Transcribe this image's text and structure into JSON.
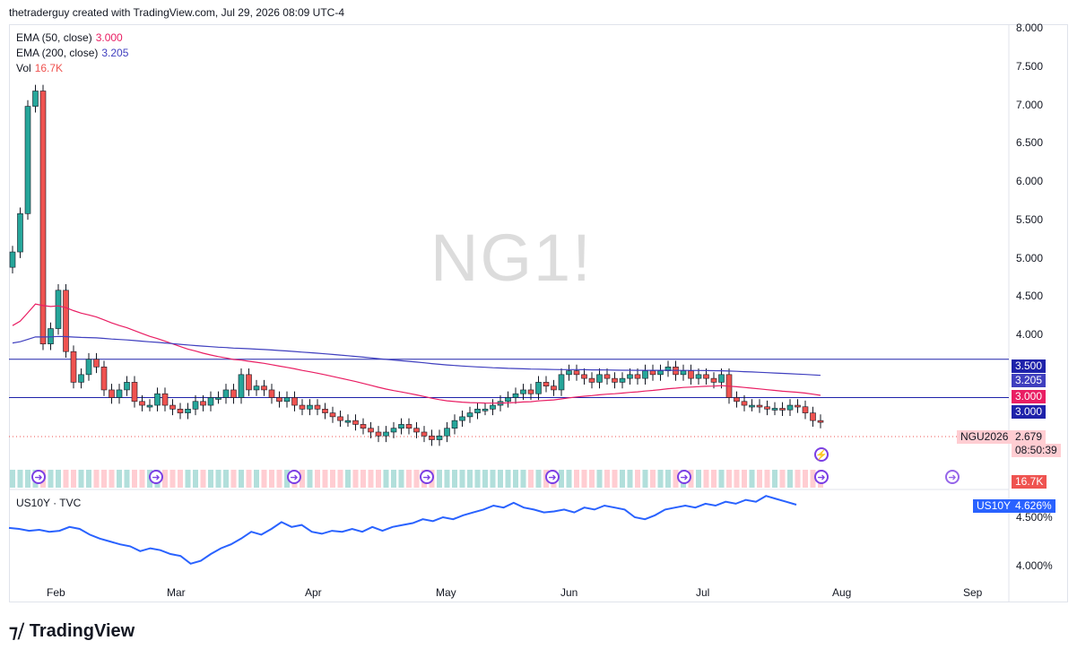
{
  "header": "thetraderguy created with TradingView.com, Jul 29, 2026 08:09 UTC-4",
  "watermark": "NG1!",
  "legend": {
    "ema50_label": "EMA (50, close)",
    "ema50_value": "3.000",
    "ema200_label": "EMA (200, close)",
    "ema200_value": "3.205",
    "vol_label": "Vol",
    "vol_value": "16.7K"
  },
  "lower_pane_label": "US10Y · TVC",
  "price_axis": [
    "8.000",
    "7.500",
    "7.000",
    "6.500",
    "6.000",
    "5.500",
    "5.000",
    "4.500",
    "4.000"
  ],
  "lower_axis": [
    "4.500%",
    "4.000%"
  ],
  "x_axis": [
    "Feb",
    "Mar",
    "Apr",
    "May",
    "Jun",
    "Jul",
    "Aug",
    "Sep"
  ],
  "tags": {
    "resistance": "3.500",
    "ema200": "3.205",
    "ema50": "3.000",
    "support": "3.000",
    "symbol": "NGU2026",
    "last_price": "2.679",
    "countdown": "08:50:39",
    "volume": "16.7K",
    "us10y_symbol": "US10Y",
    "us10y_value": "4.626%"
  },
  "logo_text": "TradingView",
  "colors": {
    "up": "#26a69a",
    "down": "#ef5350",
    "ema50": "#e91e63",
    "ema200": "#3f3fbf",
    "level": "#1e22aa",
    "us10y": "#2962ff"
  },
  "chart_data": [
    {
      "type": "candlestick",
      "symbol": "NG1!",
      "ylim": [
        2.5,
        8.0
      ],
      "horizontal_levels": [
        3.5,
        3.0
      ],
      "ema50_last": 3.0,
      "ema200_last": 3.205,
      "last_price": 2.679,
      "closes": [
        4.9,
        5.4,
        6.8,
        7.0,
        3.7,
        3.9,
        4.4,
        3.6,
        3.2,
        3.3,
        3.5,
        3.4,
        3.1,
        3.0,
        3.1,
        3.2,
        2.95,
        2.9,
        2.9,
        3.05,
        2.9,
        2.85,
        2.8,
        2.85,
        2.95,
        2.9,
        3.0,
        3.0,
        3.1,
        3.0,
        3.3,
        3.1,
        3.15,
        3.1,
        3.0,
        2.95,
        3.0,
        2.9,
        2.85,
        2.9,
        2.85,
        2.8,
        2.75,
        2.7,
        2.7,
        2.65,
        2.6,
        2.55,
        2.5,
        2.55,
        2.6,
        2.65,
        2.6,
        2.55,
        2.5,
        2.45,
        2.5,
        2.6,
        2.7,
        2.75,
        2.8,
        2.85,
        2.85,
        2.9,
        2.95,
        3.0,
        3.05,
        3.1,
        3.05,
        3.2,
        3.15,
        3.1,
        3.3,
        3.35,
        3.3,
        3.25,
        3.2,
        3.3,
        3.25,
        3.2,
        3.25,
        3.3,
        3.25,
        3.35,
        3.3,
        3.35,
        3.4,
        3.3,
        3.35,
        3.25,
        3.3,
        3.25,
        3.2,
        3.3,
        3.0,
        2.95,
        2.9,
        2.9,
        2.88,
        2.85,
        2.86,
        2.84,
        2.9,
        2.88,
        2.8,
        2.7,
        2.679
      ]
    },
    {
      "type": "line",
      "symbol": "US10Y",
      "ylim": [
        3.95,
        4.7
      ],
      "last_value": 4.626,
      "values": [
        4.39,
        4.38,
        4.36,
        4.37,
        4.35,
        4.36,
        4.4,
        4.38,
        4.32,
        4.28,
        4.25,
        4.22,
        4.2,
        4.15,
        4.18,
        4.16,
        4.12,
        4.1,
        4.02,
        4.05,
        4.12,
        4.18,
        4.22,
        4.28,
        4.35,
        4.32,
        4.38,
        4.45,
        4.4,
        4.42,
        4.35,
        4.33,
        4.36,
        4.35,
        4.38,
        4.35,
        4.4,
        4.36,
        4.4,
        4.42,
        4.44,
        4.48,
        4.46,
        4.5,
        4.48,
        4.52,
        4.55,
        4.58,
        4.62,
        4.6,
        4.65,
        4.6,
        4.58,
        4.55,
        4.56,
        4.58,
        4.55,
        4.6,
        4.58,
        4.62,
        4.6,
        4.58,
        4.5,
        4.48,
        4.52,
        4.58,
        4.6,
        4.62,
        4.6,
        4.64,
        4.62,
        4.66,
        4.64,
        4.68,
        4.66,
        4.72,
        4.69,
        4.66,
        4.63
      ]
    }
  ]
}
